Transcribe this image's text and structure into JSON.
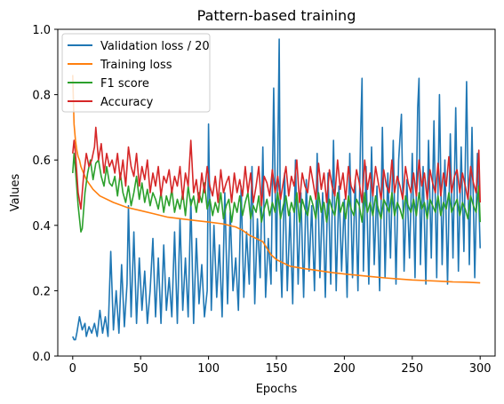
{
  "chart_data": {
    "type": "line",
    "title": "Pattern-based training",
    "xlabel": "Epochs",
    "ylabel": "Values",
    "xlim": [
      -11,
      311
    ],
    "ylim": [
      0.0,
      1.0
    ],
    "xticks": [
      0,
      50,
      100,
      150,
      200,
      250,
      300
    ],
    "xtick_labels": [
      "0",
      "50",
      "100",
      "150",
      "200",
      "250",
      "300"
    ],
    "yticks": [
      0.0,
      0.2,
      0.4,
      0.6,
      0.8,
      1.0
    ],
    "ytick_labels": [
      "0.0",
      "0.2",
      "0.4",
      "0.6",
      "0.8",
      "1.0"
    ],
    "grid": false,
    "legend_position": "top-left",
    "series": [
      {
        "name": "Validation loss / 20",
        "color": "#1f77b4",
        "x": [
          0,
          1,
          2,
          3,
          5,
          7,
          9,
          10,
          12,
          14,
          16,
          18,
          20,
          22,
          24,
          26,
          28,
          30,
          32,
          34,
          36,
          38,
          40,
          41,
          43,
          45,
          47,
          49,
          51,
          53,
          55,
          57,
          59,
          61,
          63,
          65,
          67,
          69,
          71,
          73,
          75,
          77,
          79,
          81,
          83,
          85,
          87,
          89,
          91,
          93,
          95,
          97,
          99,
          100,
          102,
          104,
          106,
          108,
          110,
          112,
          114,
          116,
          118,
          120,
          122,
          124,
          126,
          128,
          130,
          132,
          134,
          136,
          138,
          140,
          142,
          144,
          146,
          148,
          150,
          152,
          153,
          154,
          156,
          158,
          160,
          162,
          164,
          166,
          168,
          170,
          172,
          174,
          176,
          178,
          180,
          182,
          184,
          186,
          188,
          190,
          192,
          194,
          196,
          198,
          200,
          202,
          204,
          206,
          208,
          210,
          212,
          213,
          214,
          216,
          218,
          220,
          222,
          224,
          226,
          228,
          230,
          232,
          234,
          236,
          238,
          240,
          242,
          244,
          246,
          248,
          250,
          252,
          254,
          255,
          256,
          258,
          260,
          262,
          264,
          266,
          268,
          270,
          272,
          274,
          276,
          278,
          280,
          282,
          284,
          286,
          288,
          290,
          292,
          294,
          296,
          298,
          300
        ],
        "values": [
          0.06,
          0.05,
          0.05,
          0.07,
          0.12,
          0.08,
          0.1,
          0.06,
          0.09,
          0.07,
          0.1,
          0.06,
          0.14,
          0.07,
          0.12,
          0.06,
          0.32,
          0.08,
          0.2,
          0.07,
          0.28,
          0.09,
          0.22,
          0.46,
          0.12,
          0.38,
          0.1,
          0.3,
          0.14,
          0.26,
          0.1,
          0.2,
          0.36,
          0.12,
          0.3,
          0.1,
          0.34,
          0.14,
          0.24,
          0.12,
          0.38,
          0.1,
          0.42,
          0.14,
          0.3,
          0.12,
          0.48,
          0.1,
          0.36,
          0.16,
          0.28,
          0.12,
          0.2,
          0.71,
          0.14,
          0.4,
          0.18,
          0.34,
          0.12,
          0.5,
          0.16,
          0.44,
          0.2,
          0.3,
          0.14,
          0.52,
          0.18,
          0.38,
          0.22,
          0.58,
          0.16,
          0.42,
          0.24,
          0.64,
          0.18,
          0.36,
          0.22,
          0.82,
          0.26,
          0.97,
          0.3,
          0.18,
          0.56,
          0.2,
          0.44,
          0.16,
          0.6,
          0.22,
          0.5,
          0.18,
          0.54,
          0.26,
          0.46,
          0.2,
          0.62,
          0.24,
          0.5,
          0.18,
          0.56,
          0.22,
          0.66,
          0.2,
          0.52,
          0.26,
          0.48,
          0.18,
          0.62,
          0.24,
          0.54,
          0.2,
          0.68,
          0.85,
          0.26,
          0.58,
          0.22,
          0.64,
          0.28,
          0.52,
          0.2,
          0.7,
          0.24,
          0.56,
          0.3,
          0.66,
          0.22,
          0.6,
          0.74,
          0.26,
          0.54,
          0.3,
          0.62,
          0.24,
          0.76,
          0.85,
          0.28,
          0.58,
          0.22,
          0.66,
          0.3,
          0.72,
          0.24,
          0.8,
          0.28,
          0.6,
          0.22,
          0.68,
          0.3,
          0.76,
          0.26,
          0.64,
          0.32,
          0.84,
          0.28,
          0.7,
          0.24,
          0.62,
          0.33
        ]
      },
      {
        "name": "Training loss",
        "color": "#ff7f0e",
        "x": [
          0,
          1,
          2,
          3,
          4,
          5,
          6,
          8,
          10,
          15,
          20,
          30,
          40,
          50,
          60,
          70,
          80,
          90,
          100,
          110,
          120,
          125,
          130,
          135,
          140,
          143,
          146,
          150,
          155,
          160,
          170,
          180,
          190,
          200,
          210,
          220,
          230,
          240,
          250,
          260,
          270,
          280,
          290,
          300
        ],
        "values": [
          0.86,
          0.71,
          0.66,
          0.63,
          0.61,
          0.6,
          0.58,
          0.56,
          0.54,
          0.51,
          0.49,
          0.47,
          0.455,
          0.445,
          0.435,
          0.425,
          0.42,
          0.415,
          0.41,
          0.405,
          0.395,
          0.385,
          0.37,
          0.36,
          0.35,
          0.33,
          0.31,
          0.295,
          0.285,
          0.275,
          0.268,
          0.262,
          0.256,
          0.251,
          0.247,
          0.243,
          0.239,
          0.236,
          0.233,
          0.231,
          0.229,
          0.227,
          0.226,
          0.224
        ]
      },
      {
        "name": "F1 score",
        "color": "#2ca02c",
        "x": [
          0,
          1,
          2,
          4,
          6,
          7,
          9,
          11,
          13,
          15,
          17,
          19,
          21,
          23,
          25,
          27,
          29,
          31,
          33,
          35,
          37,
          39,
          41,
          43,
          45,
          47,
          49,
          51,
          53,
          55,
          57,
          59,
          61,
          63,
          65,
          67,
          69,
          71,
          73,
          75,
          77,
          79,
          81,
          83,
          85,
          87,
          89,
          91,
          93,
          95,
          97,
          99,
          101,
          103,
          105,
          107,
          109,
          111,
          113,
          115,
          117,
          119,
          121,
          123,
          125,
          127,
          129,
          131,
          133,
          135,
          137,
          139,
          141,
          143,
          145,
          147,
          149,
          151,
          153,
          155,
          157,
          159,
          161,
          163,
          165,
          167,
          169,
          171,
          173,
          175,
          177,
          179,
          181,
          183,
          185,
          187,
          189,
          191,
          193,
          195,
          197,
          199,
          201,
          203,
          205,
          207,
          209,
          211,
          213,
          215,
          217,
          219,
          221,
          223,
          225,
          227,
          229,
          231,
          233,
          235,
          237,
          239,
          241,
          243,
          245,
          247,
          249,
          251,
          253,
          255,
          257,
          259,
          261,
          263,
          265,
          267,
          269,
          271,
          273,
          275,
          277,
          279,
          281,
          283,
          285,
          287,
          289,
          291,
          293,
          295,
          297,
          299,
          300
        ],
        "values": [
          0.56,
          0.62,
          0.57,
          0.46,
          0.38,
          0.39,
          0.5,
          0.56,
          0.6,
          0.54,
          0.59,
          0.6,
          0.55,
          0.52,
          0.58,
          0.53,
          0.52,
          0.55,
          0.49,
          0.56,
          0.5,
          0.47,
          0.52,
          0.46,
          0.5,
          0.55,
          0.48,
          0.53,
          0.47,
          0.51,
          0.46,
          0.5,
          0.48,
          0.45,
          0.5,
          0.44,
          0.49,
          0.46,
          0.51,
          0.44,
          0.48,
          0.45,
          0.5,
          0.43,
          0.52,
          0.46,
          0.49,
          0.44,
          0.5,
          0.47,
          0.53,
          0.45,
          0.48,
          0.43,
          0.47,
          0.44,
          0.5,
          0.42,
          0.46,
          0.48,
          0.41,
          0.47,
          0.44,
          0.49,
          0.43,
          0.47,
          0.5,
          0.42,
          0.46,
          0.44,
          0.49,
          0.41,
          0.45,
          0.48,
          0.43,
          0.47,
          0.44,
          0.5,
          0.42,
          0.46,
          0.49,
          0.43,
          0.47,
          0.44,
          0.5,
          0.41,
          0.48,
          0.45,
          0.43,
          0.49,
          0.46,
          0.42,
          0.5,
          0.44,
          0.47,
          0.41,
          0.48,
          0.45,
          0.43,
          0.5,
          0.44,
          0.47,
          0.42,
          0.49,
          0.45,
          0.43,
          0.48,
          0.46,
          0.41,
          0.5,
          0.44,
          0.47,
          0.43,
          0.49,
          0.45,
          0.42,
          0.48,
          0.46,
          0.44,
          0.5,
          0.43,
          0.47,
          0.45,
          0.42,
          0.49,
          0.46,
          0.44,
          0.48,
          0.43,
          0.5,
          0.45,
          0.47,
          0.42,
          0.48,
          0.46,
          0.44,
          0.49,
          0.43,
          0.47,
          0.45,
          0.5,
          0.44,
          0.46,
          0.48,
          0.43,
          0.47,
          0.45,
          0.42,
          0.49,
          0.46,
          0.44,
          0.52,
          0.41
        ]
      },
      {
        "name": "Accuracy",
        "color": "#d62728",
        "x": [
          0,
          1,
          2,
          4,
          6,
          8,
          10,
          12,
          14,
          16,
          17,
          19,
          21,
          23,
          25,
          27,
          29,
          31,
          33,
          35,
          37,
          39,
          41,
          43,
          45,
          47,
          49,
          51,
          53,
          55,
          57,
          59,
          61,
          63,
          65,
          67,
          69,
          71,
          73,
          75,
          77,
          79,
          81,
          83,
          85,
          87,
          89,
          91,
          93,
          95,
          97,
          99,
          101,
          103,
          105,
          107,
          109,
          111,
          113,
          115,
          117,
          119,
          121,
          123,
          125,
          127,
          129,
          131,
          133,
          135,
          137,
          139,
          141,
          143,
          145,
          147,
          149,
          151,
          153,
          155,
          157,
          159,
          161,
          163,
          165,
          167,
          169,
          171,
          173,
          175,
          177,
          179,
          181,
          183,
          185,
          187,
          189,
          191,
          193,
          195,
          197,
          199,
          201,
          203,
          205,
          207,
          209,
          211,
          213,
          215,
          217,
          219,
          221,
          223,
          225,
          227,
          229,
          231,
          233,
          235,
          237,
          239,
          241,
          243,
          245,
          247,
          249,
          251,
          253,
          255,
          257,
          259,
          261,
          263,
          265,
          267,
          269,
          271,
          273,
          275,
          277,
          279,
          281,
          283,
          285,
          287,
          289,
          291,
          293,
          295,
          297,
          299,
          300
        ],
        "values": [
          0.62,
          0.66,
          0.62,
          0.5,
          0.45,
          0.55,
          0.62,
          0.58,
          0.6,
          0.64,
          0.7,
          0.6,
          0.65,
          0.56,
          0.62,
          0.58,
          0.6,
          0.56,
          0.62,
          0.54,
          0.6,
          0.52,
          0.64,
          0.58,
          0.55,
          0.62,
          0.52,
          0.58,
          0.54,
          0.6,
          0.5,
          0.56,
          0.52,
          0.58,
          0.49,
          0.55,
          0.53,
          0.57,
          0.5,
          0.55,
          0.52,
          0.58,
          0.48,
          0.56,
          0.52,
          0.66,
          0.5,
          0.54,
          0.47,
          0.56,
          0.5,
          0.58,
          0.52,
          0.49,
          0.55,
          0.47,
          0.57,
          0.5,
          0.53,
          0.55,
          0.47,
          0.56,
          0.5,
          0.54,
          0.49,
          0.58,
          0.5,
          0.56,
          0.47,
          0.52,
          0.58,
          0.46,
          0.55,
          0.53,
          0.49,
          0.57,
          0.5,
          0.55,
          0.48,
          0.53,
          0.58,
          0.49,
          0.55,
          0.52,
          0.6,
          0.47,
          0.56,
          0.52,
          0.5,
          0.58,
          0.53,
          0.48,
          0.59,
          0.51,
          0.56,
          0.47,
          0.57,
          0.52,
          0.49,
          0.6,
          0.51,
          0.56,
          0.48,
          0.58,
          0.52,
          0.5,
          0.57,
          0.53,
          0.47,
          0.6,
          0.51,
          0.56,
          0.49,
          0.58,
          0.53,
          0.48,
          0.57,
          0.52,
          0.5,
          0.6,
          0.5,
          0.55,
          0.52,
          0.48,
          0.58,
          0.53,
          0.5,
          0.56,
          0.49,
          0.6,
          0.52,
          0.56,
          0.48,
          0.57,
          0.53,
          0.5,
          0.59,
          0.49,
          0.56,
          0.52,
          0.61,
          0.5,
          0.55,
          0.57,
          0.5,
          0.56,
          0.52,
          0.48,
          0.58,
          0.53,
          0.5,
          0.63,
          0.47
        ]
      }
    ]
  }
}
